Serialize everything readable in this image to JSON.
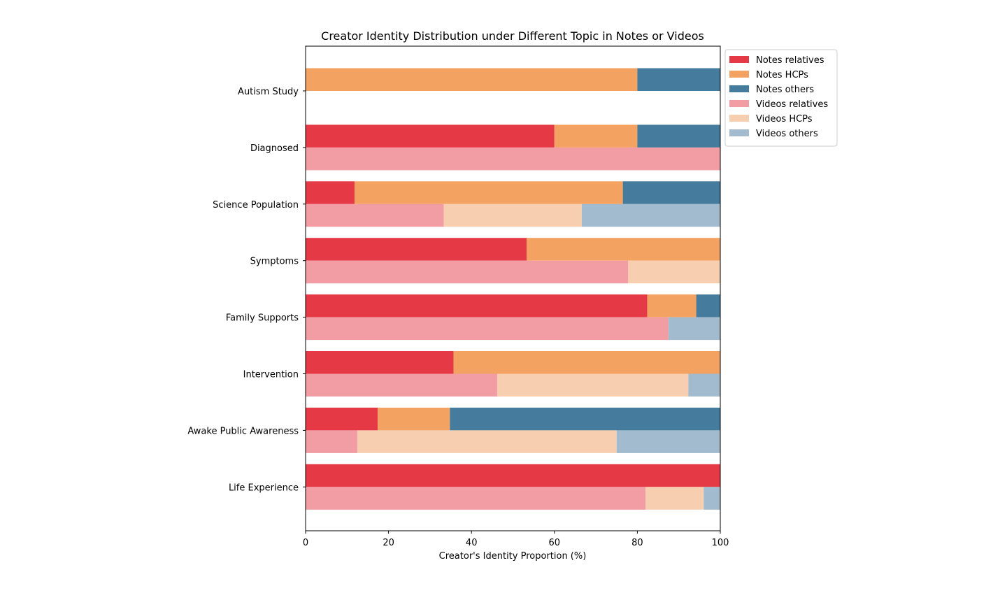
{
  "chart_data": {
    "type": "bar",
    "orientation": "horizontal",
    "stacked": true,
    "title": "Creator Identity Distribution under Different Topic in Notes or Videos",
    "xlabel": "Creator's Identity Proportion (%)",
    "ylabel": "",
    "xlim": [
      0,
      100
    ],
    "xticks": [
      "0",
      "20",
      "40",
      "60",
      "80",
      "100"
    ],
    "grid": false,
    "legend_position": "outside-top-right",
    "categories": [
      "Autism Study",
      "Diagnosed",
      "Science Population",
      "Symptoms",
      "Family Supports",
      "Intervention",
      "Awake Public Awareness",
      "Life Experience"
    ],
    "series": [
      {
        "name": "Notes relatives",
        "group": "Notes",
        "color": "#e63946",
        "values": [
          0,
          60,
          11.8,
          53.3,
          82.4,
          35.7,
          17.4,
          100
        ]
      },
      {
        "name": "Notes HCPs",
        "group": "Notes",
        "color": "#f4a261",
        "values": [
          80,
          20,
          64.7,
          46.7,
          11.8,
          64.3,
          17.4,
          0
        ]
      },
      {
        "name": "Notes others",
        "group": "Notes",
        "color": "#457b9d",
        "values": [
          20,
          20,
          23.5,
          0,
          5.8,
          0,
          65.2,
          0
        ]
      },
      {
        "name": "Videos relatives",
        "group": "Videos",
        "color": "#f29ca3",
        "values": [
          0,
          100,
          33.3,
          77.8,
          87.5,
          46.2,
          12.5,
          82
        ]
      },
      {
        "name": "Videos HCPs",
        "group": "Videos",
        "color": "#f7cfb0",
        "values": [
          0,
          0,
          33.3,
          22.2,
          0,
          46.1,
          62.5,
          14
        ]
      },
      {
        "name": "Videos others",
        "group": "Videos",
        "color": "#a2bbce",
        "values": [
          0,
          0,
          33.4,
          0,
          12.5,
          7.7,
          25,
          4
        ]
      }
    ]
  }
}
